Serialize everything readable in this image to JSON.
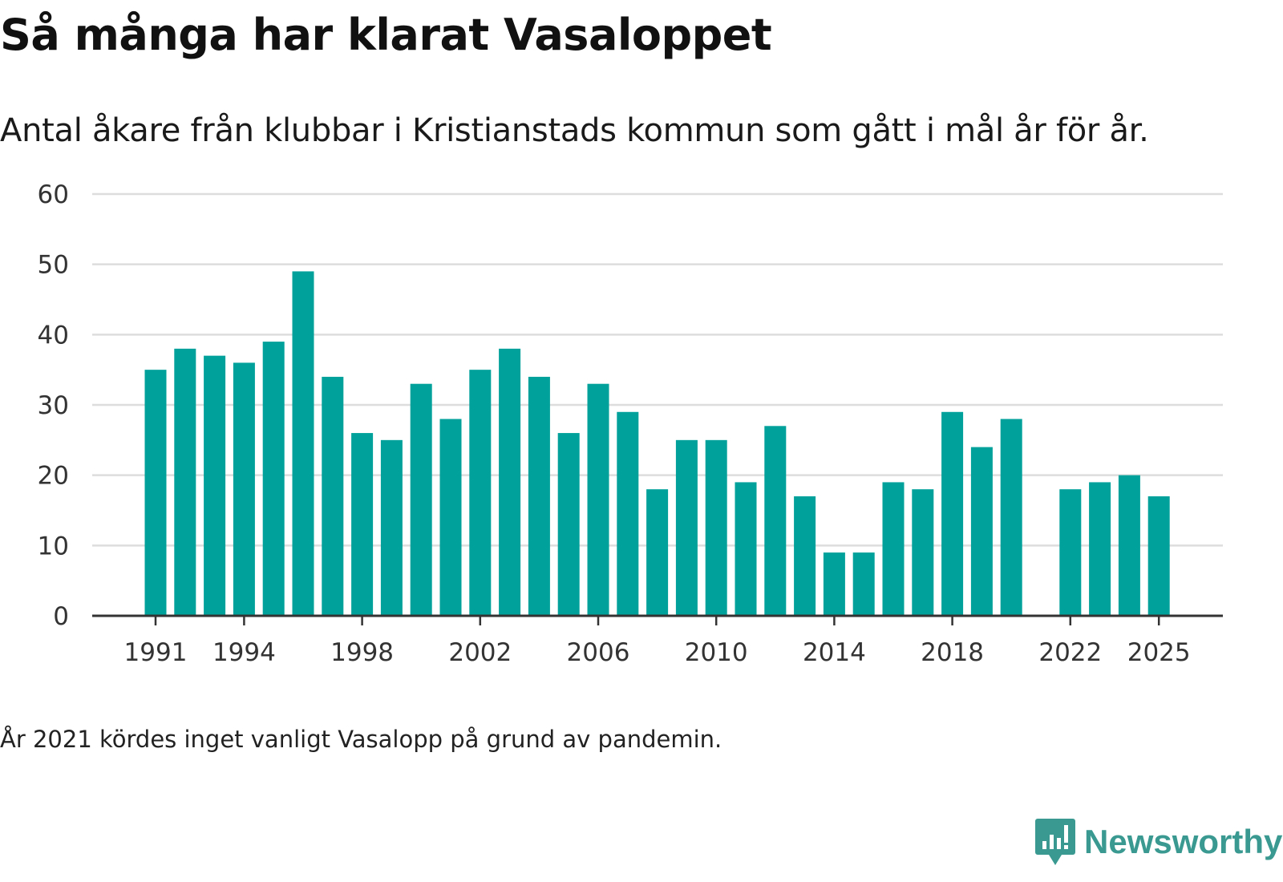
{
  "chart_data": {
    "type": "bar",
    "title": "Så många har klarat Vasaloppet",
    "subtitle": "Antal åkare från klubbar i Kristianstads kommun som gått i mål år för år.",
    "xlabel": "",
    "ylabel": "",
    "categories": [
      1991,
      1992,
      1993,
      1994,
      1995,
      1996,
      1997,
      1998,
      1999,
      2000,
      2001,
      2002,
      2003,
      2004,
      2005,
      2006,
      2007,
      2008,
      2009,
      2010,
      2011,
      2012,
      2013,
      2014,
      2015,
      2016,
      2017,
      2018,
      2019,
      2020,
      2021,
      2022,
      2023,
      2024,
      2025
    ],
    "values": [
      35,
      38,
      37,
      36,
      39,
      49,
      34,
      26,
      25,
      33,
      28,
      35,
      38,
      34,
      26,
      33,
      29,
      18,
      25,
      25,
      19,
      27,
      17,
      9,
      9,
      19,
      18,
      29,
      24,
      28,
      null,
      18,
      19,
      20,
      17
    ],
    "x_tick_labels": [
      "1991",
      "1994",
      "1998",
      "2002",
      "2006",
      "2010",
      "2014",
      "2018",
      "2022",
      "2025"
    ],
    "y_ticks": [
      0,
      10,
      20,
      30,
      40,
      50,
      60
    ],
    "ylim": [
      0,
      60
    ],
    "grid": true,
    "bar_color": "#00a19a",
    "note": "År 2021 kördes inget vanligt Vasalopp på grund av pandemin."
  },
  "brand": {
    "name": "Newsworthy",
    "color": "#3a9a91"
  }
}
